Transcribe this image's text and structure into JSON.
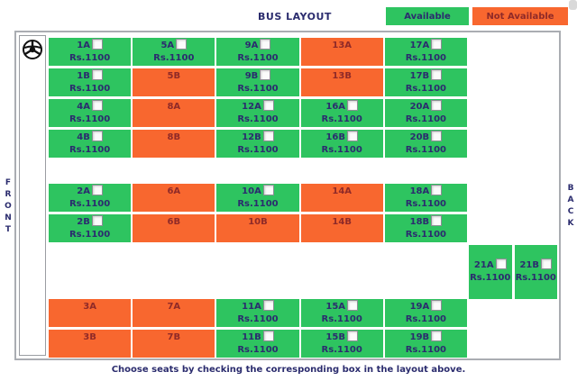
{
  "header": {
    "title": "BUS LAYOUT",
    "legend": {
      "available": "Available",
      "not_available": "Not Available"
    }
  },
  "side_labels": {
    "front": "FRONT",
    "back": "BACK"
  },
  "colors": {
    "available": "#2ec460",
    "not_available": "#f8672f",
    "seat_text": "#2b2c6e",
    "not_available_text": "#8f2a28"
  },
  "seats": {
    "front_rows": [
      [
        {
          "id": "1A",
          "status": "available",
          "price": "Rs.1100"
        },
        {
          "id": "5A",
          "status": "available",
          "price": "Rs.1100"
        },
        {
          "id": "9A",
          "status": "available",
          "price": "Rs.1100"
        },
        {
          "id": "13A",
          "status": "not_available"
        },
        {
          "id": "17A",
          "status": "available",
          "price": "Rs.1100"
        }
      ],
      [
        {
          "id": "1B",
          "status": "available",
          "price": "Rs.1100"
        },
        {
          "id": "5B",
          "status": "not_available"
        },
        {
          "id": "9B",
          "status": "available",
          "price": "Rs.1100"
        },
        {
          "id": "13B",
          "status": "not_available"
        },
        {
          "id": "17B",
          "status": "available",
          "price": "Rs.1100"
        }
      ],
      [
        {
          "id": "4A",
          "status": "available",
          "price": "Rs.1100"
        },
        {
          "id": "8A",
          "status": "not_available"
        },
        {
          "id": "12A",
          "status": "available",
          "price": "Rs.1100"
        },
        {
          "id": "16A",
          "status": "available",
          "price": "Rs.1100"
        },
        {
          "id": "20A",
          "status": "available",
          "price": "Rs.1100"
        }
      ],
      [
        {
          "id": "4B",
          "status": "available",
          "price": "Rs.1100"
        },
        {
          "id": "8B",
          "status": "not_available"
        },
        {
          "id": "12B",
          "status": "available",
          "price": "Rs.1100"
        },
        {
          "id": "16B",
          "status": "available",
          "price": "Rs.1100"
        },
        {
          "id": "20B",
          "status": "available",
          "price": "Rs.1100"
        }
      ]
    ],
    "middle_rows": [
      [
        {
          "id": "2A",
          "status": "available",
          "price": "Rs.1100"
        },
        {
          "id": "6A",
          "status": "not_available"
        },
        {
          "id": "10A",
          "status": "available",
          "price": "Rs.1100"
        },
        {
          "id": "14A",
          "status": "not_available"
        },
        {
          "id": "18A",
          "status": "available",
          "price": "Rs.1100"
        }
      ],
      [
        {
          "id": "2B",
          "status": "available",
          "price": "Rs.1100"
        },
        {
          "id": "6B",
          "status": "not_available"
        },
        {
          "id": "10B",
          "status": "not_available"
        },
        {
          "id": "14B",
          "status": "not_available"
        },
        {
          "id": "18B",
          "status": "available",
          "price": "Rs.1100"
        }
      ]
    ],
    "back_corner_seats": [
      {
        "id": "21A",
        "status": "available",
        "price": "Rs.1100"
      },
      {
        "id": "21B",
        "status": "available",
        "price": "Rs.1100"
      }
    ],
    "rear_rows": [
      [
        {
          "id": "3A",
          "status": "not_available"
        },
        {
          "id": "7A",
          "status": "not_available"
        },
        {
          "id": "11A",
          "status": "available",
          "price": "Rs.1100"
        },
        {
          "id": "15A",
          "status": "available",
          "price": "Rs.1100"
        },
        {
          "id": "19A",
          "status": "available",
          "price": "Rs.1100"
        }
      ],
      [
        {
          "id": "3B",
          "status": "not_available"
        },
        {
          "id": "7B",
          "status": "not_available"
        },
        {
          "id": "11B",
          "status": "available",
          "price": "Rs.1100"
        },
        {
          "id": "15B",
          "status": "available",
          "price": "Rs.1100"
        },
        {
          "id": "19B",
          "status": "available",
          "price": "Rs.1100"
        }
      ]
    ]
  },
  "footer": {
    "note": "Choose seats by checking the corresponding box in the layout above."
  }
}
